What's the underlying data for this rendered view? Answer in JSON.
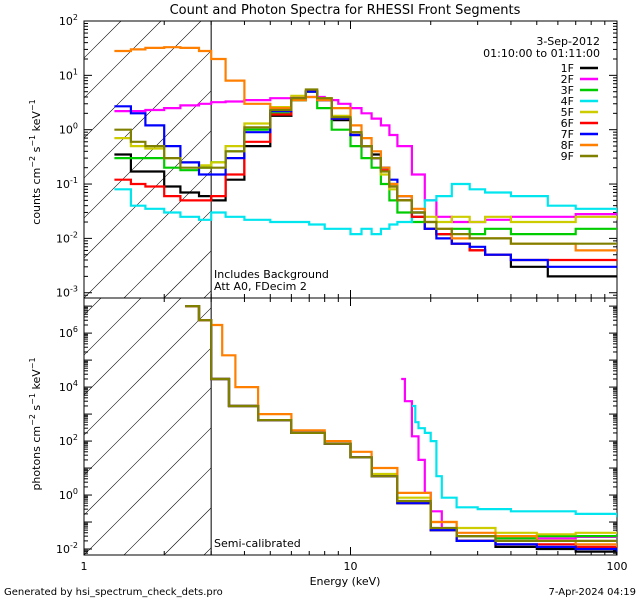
{
  "chart_data": [
    {
      "type": "line",
      "title": "Count and Photon Spectra for RHESSI Front Segments",
      "date_label": "3-Sep-2012",
      "time_range_label": "01:10:00 to 01:11:00",
      "ylabel": "counts cm^-2 s^-1 keV^-1",
      "ylim": [
        0.0008,
        100
      ],
      "xlim": [
        1,
        100
      ],
      "y_ticks": [
        {
          "value": 0.001,
          "base": "10",
          "exp": "-3"
        },
        {
          "value": 0.01,
          "base": "10",
          "exp": "-2"
        },
        {
          "value": 0.1,
          "base": "10",
          "exp": "-1"
        },
        {
          "value": 1,
          "base": "10",
          "exp": "0"
        },
        {
          "value": 10,
          "base": "10",
          "exp": "1"
        },
        {
          "value": 100,
          "base": "10",
          "exp": "2"
        }
      ],
      "annotation_lines": [
        "Includes Background",
        "Att A0, FDecim 2"
      ],
      "hatched_region_keV": [
        1,
        3
      ],
      "series": [
        {
          "name": "1F",
          "color": "#000000",
          "x": [
            1.3,
            1.5,
            1.7,
            2.0,
            2.3,
            2.7,
            3.0,
            3.4,
            4.0,
            5.0,
            6.0,
            6.8,
            7.5,
            8.5,
            10,
            11,
            12,
            13,
            14,
            15,
            17,
            19,
            21,
            24,
            28,
            32,
            40,
            55,
            70,
            100
          ],
          "values": [
            0.35,
            0.17,
            0.17,
            0.09,
            0.07,
            0.06,
            0.05,
            0.12,
            0.5,
            1.8,
            3.5,
            5.0,
            3.5,
            1.5,
            0.8,
            0.5,
            0.35,
            0.2,
            0.1,
            0.05,
            0.025,
            0.015,
            0.012,
            0.008,
            0.006,
            0.005,
            0.003,
            0.002,
            0.002,
            0.002
          ]
        },
        {
          "name": "2F",
          "color": "#ff00ff",
          "x": [
            1.3,
            1.5,
            1.7,
            2.0,
            2.3,
            2.7,
            3.0,
            3.4,
            4.0,
            5.0,
            6.0,
            7.0,
            8.0,
            9.0,
            10,
            11,
            12,
            13,
            14,
            15,
            17,
            19,
            21,
            24,
            28,
            32,
            40,
            55,
            70,
            100
          ],
          "values": [
            2.2,
            2.2,
            2.3,
            2.5,
            2.8,
            3.0,
            3.2,
            3.3,
            3.5,
            3.8,
            4.0,
            4.0,
            3.5,
            3.0,
            2.5,
            2.0,
            1.6,
            1.2,
            0.8,
            0.5,
            0.15,
            0.05,
            0.025,
            0.02,
            0.02,
            0.022,
            0.025,
            0.025,
            0.028,
            0.028
          ]
        },
        {
          "name": "3F",
          "color": "#00cc00",
          "x": [
            1.3,
            1.5,
            1.7,
            2.0,
            2.3,
            2.7,
            3.0,
            3.4,
            4.0,
            5.0,
            6.0,
            6.8,
            7.5,
            8.5,
            10,
            11,
            12,
            13,
            14,
            15,
            17,
            19,
            21,
            24,
            28,
            32,
            40,
            55,
            70,
            100
          ],
          "values": [
            0.3,
            0.3,
            0.3,
            0.2,
            0.18,
            0.2,
            0.25,
            0.4,
            1.0,
            2.0,
            3.5,
            5.0,
            2.5,
            1.0,
            0.5,
            0.3,
            0.2,
            0.1,
            0.05,
            0.03,
            0.02,
            0.015,
            0.012,
            0.015,
            0.012,
            0.015,
            0.012,
            0.012,
            0.015,
            0.015
          ]
        },
        {
          "name": "4F",
          "color": "#00e5ee",
          "x": [
            1.3,
            1.5,
            1.7,
            2.0,
            2.3,
            2.7,
            3.0,
            3.4,
            4.0,
            5.0,
            6.0,
            7.0,
            8.0,
            9.0,
            10,
            11,
            12,
            13,
            14,
            15,
            17,
            19,
            21,
            24,
            28,
            32,
            40,
            55,
            70,
            100
          ],
          "values": [
            0.08,
            0.04,
            0.035,
            0.03,
            0.025,
            0.022,
            0.03,
            0.025,
            0.022,
            0.02,
            0.02,
            0.018,
            0.015,
            0.015,
            0.012,
            0.015,
            0.012,
            0.015,
            0.018,
            0.02,
            0.03,
            0.05,
            0.06,
            0.1,
            0.08,
            0.07,
            0.06,
            0.04,
            0.035,
            0.03
          ]
        },
        {
          "name": "5F",
          "color": "#cccc00",
          "x": [
            1.3,
            1.5,
            1.7,
            2.0,
            2.3,
            2.7,
            3.0,
            3.4,
            4.0,
            5.0,
            6.0,
            6.8,
            7.5,
            8.5,
            10,
            11,
            12,
            13,
            14,
            15,
            17,
            19,
            21,
            24,
            28,
            32,
            40,
            55,
            70,
            100
          ],
          "values": [
            0.7,
            0.5,
            0.45,
            0.3,
            0.25,
            0.22,
            0.25,
            0.5,
            1.3,
            2.6,
            4.2,
            5.2,
            3.8,
            1.8,
            0.9,
            0.5,
            0.3,
            0.15,
            0.08,
            0.05,
            0.03,
            0.025,
            0.02,
            0.025,
            0.02,
            0.025,
            0.02,
            0.02,
            0.025,
            0.022
          ]
        },
        {
          "name": "6F",
          "color": "#ff0000",
          "x": [
            1.3,
            1.5,
            1.7,
            2.0,
            2.3,
            2.7,
            3.0,
            3.4,
            4.0,
            5.0,
            6.0,
            6.8,
            7.5,
            8.5,
            10,
            11,
            12,
            13,
            14,
            15,
            17,
            19,
            21,
            24,
            28,
            32,
            40,
            55,
            70,
            100
          ],
          "values": [
            0.12,
            0.1,
            0.09,
            0.06,
            0.05,
            0.05,
            0.06,
            0.15,
            0.6,
            1.9,
            3.6,
            5.2,
            3.6,
            1.6,
            0.8,
            0.5,
            0.3,
            0.18,
            0.09,
            0.05,
            0.025,
            0.015,
            0.012,
            0.008,
            0.006,
            0.005,
            0.004,
            0.004,
            0.004,
            0.004
          ]
        },
        {
          "name": "7F",
          "color": "#0000ff",
          "x": [
            1.3,
            1.5,
            1.7,
            2.0,
            2.3,
            2.7,
            3.0,
            3.4,
            4.0,
            5.0,
            6.0,
            6.8,
            7.5,
            8.5,
            10,
            11,
            12,
            13,
            14,
            15,
            17,
            19,
            21,
            24,
            28,
            32,
            40,
            55,
            70,
            100
          ],
          "values": [
            2.7,
            2.0,
            1.2,
            0.5,
            0.25,
            0.15,
            0.15,
            0.3,
            0.9,
            2.2,
            3.8,
            5.0,
            3.5,
            1.6,
            0.8,
            0.5,
            0.3,
            0.2,
            0.12,
            0.06,
            0.03,
            0.015,
            0.01,
            0.008,
            0.007,
            0.005,
            0.004,
            0.003,
            0.003,
            0.003
          ]
        },
        {
          "name": "8F",
          "color": "#ff7f00",
          "x": [
            1.3,
            1.5,
            1.7,
            2.0,
            2.3,
            2.7,
            3.0,
            3.4,
            4.0,
            5.0,
            6.0,
            6.8,
            7.5,
            8.5,
            10,
            11,
            12,
            13,
            14,
            15,
            17,
            19,
            21,
            24,
            28,
            32,
            40,
            55,
            70,
            100
          ],
          "values": [
            28,
            30,
            32,
            33,
            32,
            28,
            20,
            8,
            3,
            2.5,
            3.5,
            4.0,
            3.5,
            2.5,
            1.2,
            0.7,
            0.4,
            0.2,
            0.1,
            0.06,
            0.035,
            0.02,
            0.015,
            0.01,
            0.01,
            0.01,
            0.008,
            0.008,
            0.006,
            0.006
          ]
        },
        {
          "name": "9F",
          "color": "#808000",
          "x": [
            1.3,
            1.5,
            1.7,
            2.0,
            2.3,
            2.7,
            3.0,
            3.4,
            4.0,
            5.0,
            6.0,
            6.8,
            7.5,
            8.5,
            10,
            11,
            12,
            13,
            14,
            15,
            17,
            19,
            21,
            24,
            28,
            32,
            40,
            55,
            70,
            100
          ],
          "values": [
            1.0,
            0.6,
            0.5,
            0.3,
            0.2,
            0.2,
            0.2,
            0.4,
            1.1,
            2.3,
            3.8,
            5.5,
            3.8,
            1.7,
            0.9,
            0.5,
            0.3,
            0.17,
            0.09,
            0.05,
            0.03,
            0.02,
            0.015,
            0.012,
            0.01,
            0.01,
            0.008,
            0.008,
            0.008,
            0.008
          ]
        }
      ]
    },
    {
      "type": "line",
      "ylabel": "photons cm^-2 s^-1 keV^-1",
      "xlabel": "Energy (keV)",
      "ylim": [
        0.006,
        20000000
      ],
      "xlim": [
        1,
        100
      ],
      "x_ticks": [
        {
          "value": 1,
          "label": "1"
        },
        {
          "value": 10,
          "label": "10"
        },
        {
          "value": 100,
          "label": "100"
        }
      ],
      "y_ticks": [
        {
          "value": 0.01,
          "base": "10",
          "exp": "-2"
        },
        {
          "value": 1,
          "base": "10",
          "exp": "0"
        },
        {
          "value": 100,
          "base": "10",
          "exp": "2"
        },
        {
          "value": 10000,
          "base": "10",
          "exp": "4"
        },
        {
          "value": 1000000,
          "base": "10",
          "exp": "6"
        }
      ],
      "annotation": "Semi-calibrated",
      "hatched_region_keV": [
        1,
        3
      ],
      "series": [
        {
          "name": "1F",
          "color": "#000000",
          "x": [
            2.4,
            2.7,
            3.0,
            3.5,
            4.5,
            6,
            8,
            10,
            12,
            15,
            20,
            25,
            35,
            50,
            70,
            100
          ],
          "values": [
            10000000,
            3000000,
            20000,
            2000,
            600,
            200,
            80,
            25,
            5,
            0.5,
            0.05,
            0.02,
            0.012,
            0.01,
            0.008,
            0.006
          ]
        },
        {
          "name": "2F",
          "color": "#ff00ff",
          "x": [
            15.5,
            16,
            17,
            18,
            19,
            20,
            22,
            25,
            35,
            50,
            70,
            100
          ],
          "values": [
            20000,
            3000,
            150,
            20,
            1.2,
            0.25,
            0.05,
            0.03,
            0.025,
            0.025,
            0.028,
            0.03
          ]
        },
        {
          "name": "3F",
          "color": "#00cc00",
          "x": [
            2.4,
            2.7,
            3.0,
            3.5,
            4.5,
            6,
            8,
            10,
            12,
            15,
            20,
            25,
            35,
            50,
            70,
            100
          ],
          "values": [
            10000000,
            3000000,
            20000,
            2000,
            600,
            200,
            80,
            25,
            5,
            0.5,
            0.05,
            0.03,
            0.025,
            0.03,
            0.03,
            0.035
          ]
        },
        {
          "name": "4F",
          "color": "#00e5ee",
          "x": [
            17,
            17.5,
            18,
            19,
            20,
            21,
            22,
            25,
            30,
            40,
            50,
            70,
            100
          ],
          "values": [
            2000,
            500,
            300,
            200,
            100,
            5,
            0.8,
            0.35,
            0.3,
            0.25,
            0.25,
            0.2,
            0.15
          ]
        },
        {
          "name": "5F",
          "color": "#cccc00",
          "x": [
            2.4,
            2.7,
            3.0,
            3.5,
            4.5,
            6,
            8,
            10,
            12,
            15,
            20,
            25,
            35,
            50,
            70,
            100
          ],
          "values": [
            10000000,
            3000000,
            20000,
            2000,
            600,
            200,
            80,
            25,
            6,
            0.8,
            0.1,
            0.06,
            0.04,
            0.035,
            0.04,
            0.04
          ]
        },
        {
          "name": "6F",
          "color": "#ff0000",
          "x": [
            2.4,
            2.7,
            3.0,
            3.5,
            4.5,
            6,
            8,
            10,
            12,
            15,
            20,
            25,
            35,
            50,
            70,
            100
          ],
          "values": [
            10000000,
            3000000,
            20000,
            2000,
            600,
            200,
            80,
            25,
            5,
            0.5,
            0.05,
            0.02,
            0.015,
            0.015,
            0.012,
            0.01
          ]
        },
        {
          "name": "7F",
          "color": "#0000ff",
          "x": [
            2.4,
            2.7,
            3.0,
            3.5,
            4.5,
            6,
            8,
            10,
            12,
            15,
            20,
            25,
            35,
            50,
            70,
            100
          ],
          "values": [
            10000000,
            3000000,
            20000,
            2000,
            600,
            200,
            80,
            25,
            5,
            0.5,
            0.05,
            0.02,
            0.015,
            0.012,
            0.01,
            0.008
          ]
        },
        {
          "name": "8F",
          "color": "#ff7f00",
          "x": [
            2.4,
            2.7,
            3.0,
            3.3,
            3.7,
            4.5,
            6,
            8,
            10,
            12,
            15,
            20,
            25,
            35,
            50,
            70,
            100
          ],
          "values": [
            10000000,
            3000000,
            2000000,
            150000,
            10000,
            1000,
            250,
            100,
            40,
            10,
            1.2,
            0.1,
            0.04,
            0.03,
            0.02,
            0.015,
            0.012
          ]
        },
        {
          "name": "9F",
          "color": "#808000",
          "x": [
            2.4,
            2.7,
            3.0,
            3.5,
            4.5,
            6,
            8,
            10,
            12,
            15,
            20,
            25,
            35,
            50,
            70,
            100
          ],
          "values": [
            10000000,
            3000000,
            20000,
            2000,
            600,
            200,
            80,
            25,
            5,
            0.6,
            0.06,
            0.03,
            0.02,
            0.02,
            0.02,
            0.018
          ]
        }
      ]
    }
  ],
  "footer": {
    "generated_by": "Generated by hsi_spectrum_check_dets.pro",
    "timestamp": "7-Apr-2024 04:19"
  }
}
